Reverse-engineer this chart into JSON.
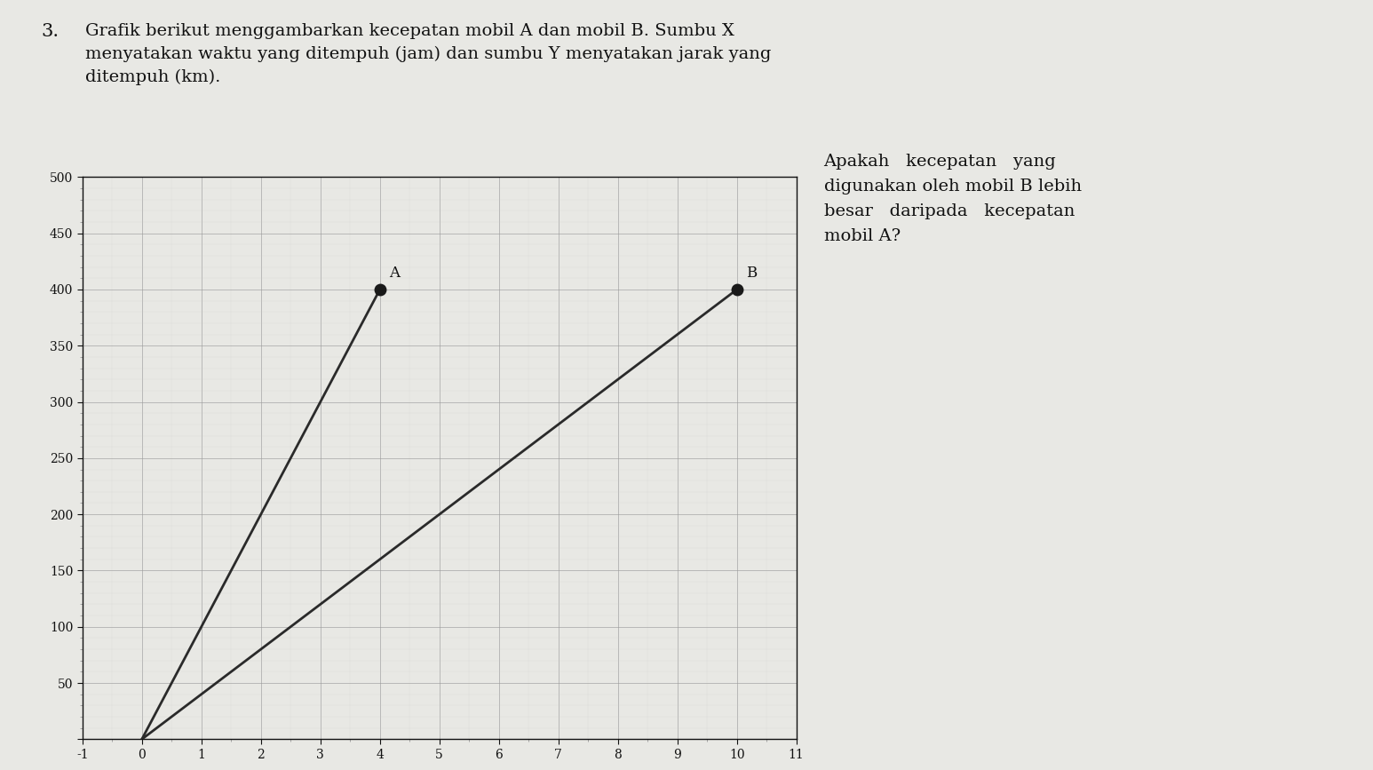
{
  "xlim": [
    -1,
    11
  ],
  "ylim": [
    0,
    500
  ],
  "xticks": [
    0,
    1,
    2,
    3,
    4,
    5,
    6,
    7,
    8,
    9,
    10,
    11
  ],
  "yticks": [
    50,
    100,
    150,
    200,
    250,
    300,
    350,
    400,
    450,
    500
  ],
  "ytick_labels": [
    "50",
    "100",
    "150",
    "200",
    "250",
    "300",
    "350",
    "400",
    "450",
    "500"
  ],
  "car_A": {
    "x": [
      0,
      4
    ],
    "y": [
      0,
      400
    ],
    "label": "A"
  },
  "car_B": {
    "x": [
      0,
      10
    ],
    "y": [
      0,
      400
    ],
    "label": "B"
  },
  "line_color": "#2a2a2a",
  "point_color": "#1a1a1a",
  "background_color": "#e8e8e4",
  "grid_major_color": "#999999",
  "grid_minor_color": "#cccccc",
  "font_color": "#111111",
  "number_label": "3.",
  "title_line1": "Grafik berikut menggambarkan kecepatan mobil A dan mobil B. Sumbu X",
  "title_line2": "menyatakan waktu yang ditempuh (jam) dan sumbu Y menyatakan jarak yang",
  "title_line3": "ditempuh (km).",
  "question_line1": "Apakah   kecepatan   yang",
  "question_line2": "digunakan oleh mobil B lebih",
  "question_line3": "besar   daripada   kecepatan",
  "question_line4": "mobil A?",
  "fig_width": 15.46,
  "fig_height": 8.67,
  "dpi": 100
}
